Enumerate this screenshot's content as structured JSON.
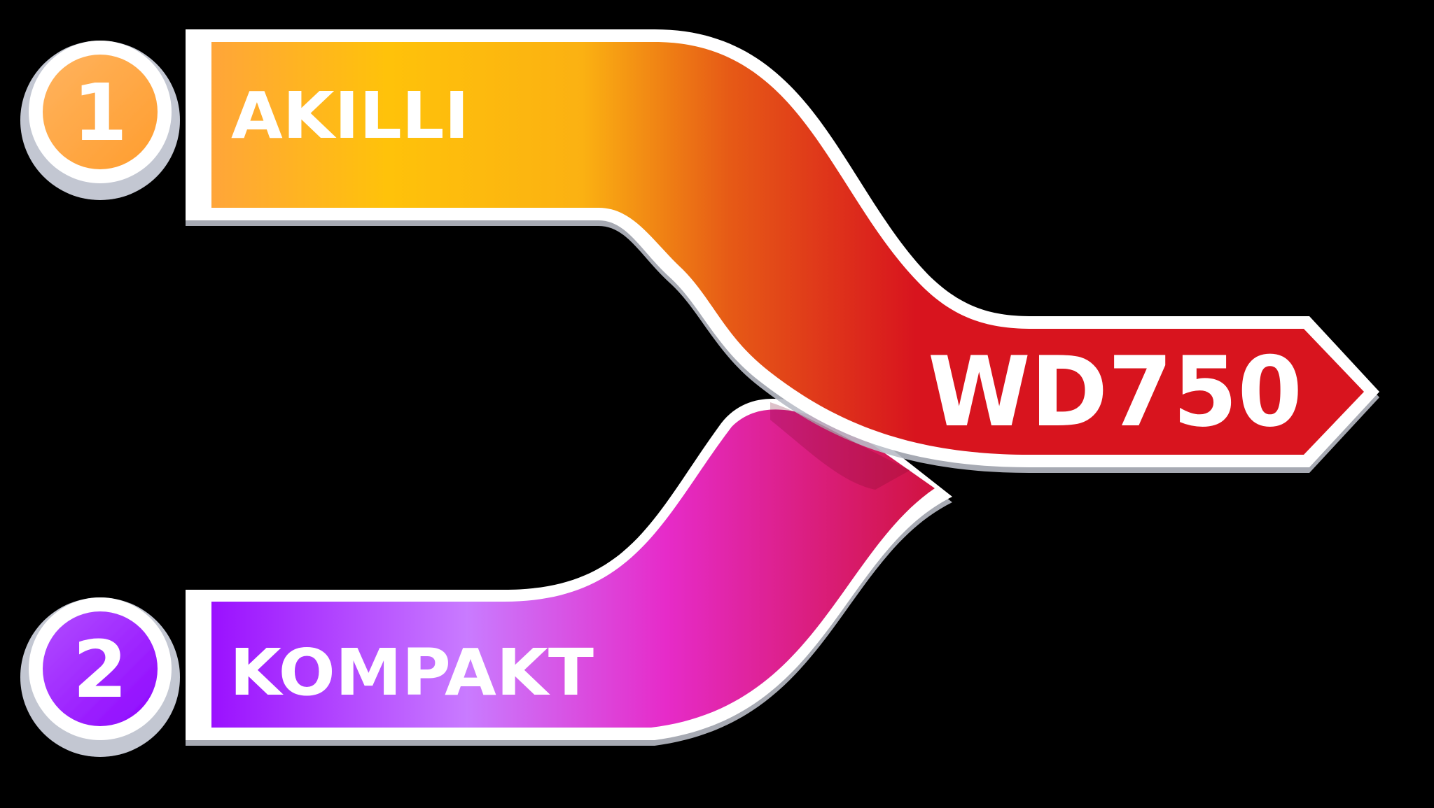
{
  "steps": [
    {
      "number": "1",
      "label": "AKILLI"
    },
    {
      "number": "2",
      "label": "KOMPAKT"
    }
  ],
  "result": {
    "label": "WD750"
  },
  "colors": {
    "top_gradient": [
      "#ffa53a",
      "#ffc20a",
      "#fbb112",
      "#e65a16",
      "#d8141e"
    ],
    "bottom_gradient": [
      "#9a10ff",
      "#c97bff",
      "#e62bc9",
      "#d0123a"
    ],
    "badge_1": [
      "#ffb35e",
      "#ff9d2e"
    ],
    "badge_2": [
      "#b14dff",
      "#8e05ff"
    ],
    "border": "#ffffff",
    "bevel": "#b9bcc6",
    "background": "#000000"
  }
}
